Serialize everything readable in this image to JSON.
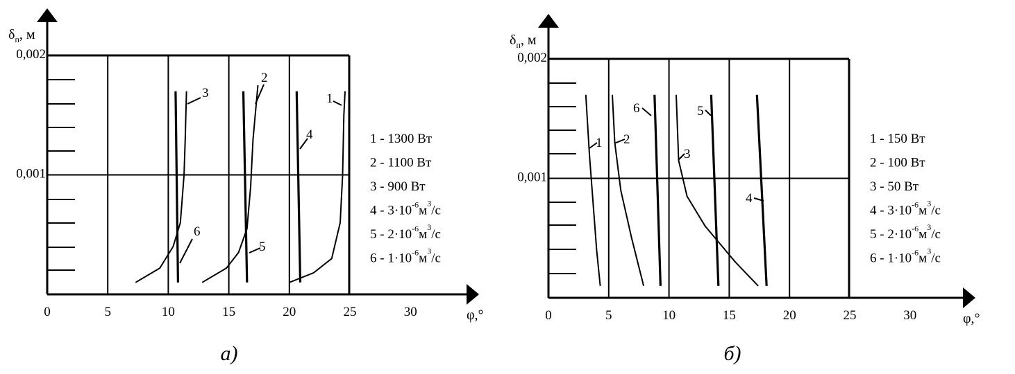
{
  "chart_data": [
    {
      "type": "line",
      "panel_caption": "а)",
      "xlabel": "φ,°",
      "ylabel": "δ",
      "ylabel_sub": "п",
      "ylabel_unit": ", м",
      "xlim": [
        0,
        35
      ],
      "ylim": [
        0,
        0.002
      ],
      "x_ticks": [
        "0",
        "5",
        "10",
        "15",
        "20",
        "25",
        "30"
      ],
      "y_ticks": [
        "0,001",
        "0,002"
      ],
      "grid": true,
      "legend_position": "right",
      "legend": [
        {
          "text": "1 - 1300 Вт"
        },
        {
          "text": "2 - 1100 Вт"
        },
        {
          "text": "3 - 900 Вт"
        },
        {
          "text": "4 - 3·10",
          "sup1": "-6",
          "unit": "м",
          "sup2": "3",
          "tail": "/с"
        },
        {
          "text": "5 - 2·10",
          "sup1": "-6",
          "unit": "м",
          "sup2": "3",
          "tail": "/с"
        },
        {
          "text": "6 - 1·10",
          "sup1": "-6",
          "unit": "м",
          "sup2": "3",
          "tail": "/с"
        }
      ],
      "series": [
        {
          "name": "1",
          "points": [
            [
              20.0,
              0.0001
            ],
            [
              22.0,
              0.00018
            ],
            [
              23.5,
              0.0003
            ],
            [
              24.2,
              0.0006
            ],
            [
              24.4,
              0.001
            ],
            [
              24.5,
              0.0015
            ],
            [
              24.6,
              0.0017
            ]
          ]
        },
        {
          "name": "2",
          "points": [
            [
              12.8,
              0.0001
            ],
            [
              14.8,
              0.00022
            ],
            [
              15.8,
              0.00035
            ],
            [
              16.5,
              0.00055
            ],
            [
              16.8,
              0.0009
            ],
            [
              17.0,
              0.0013
            ],
            [
              17.4,
              0.00175
            ]
          ]
        },
        {
          "name": "3",
          "points": [
            [
              7.3,
              0.0001
            ],
            [
              9.3,
              0.00022
            ],
            [
              10.4,
              0.0004
            ],
            [
              11.0,
              0.0006
            ],
            [
              11.3,
              0.001
            ],
            [
              11.4,
              0.0013
            ],
            [
              11.5,
              0.0017
            ]
          ]
        },
        {
          "name": "4",
          "points": [
            [
              20.6,
              0.0017
            ],
            [
              20.9,
              0.0001
            ]
          ]
        },
        {
          "name": "5",
          "points": [
            [
              16.2,
              0.0017
            ],
            [
              16.5,
              0.0001
            ]
          ]
        },
        {
          "name": "6",
          "points": [
            [
              10.6,
              0.0017
            ],
            [
              10.8,
              0.0001
            ]
          ]
        }
      ],
      "curve_labels": [
        "1",
        "2",
        "3",
        "4",
        "5",
        "6"
      ]
    },
    {
      "type": "line",
      "panel_caption": "б)",
      "xlabel": "φ,°",
      "ylabel": "δ",
      "ylabel_sub": "п",
      "ylabel_unit": ", м",
      "xlim": [
        0,
        35
      ],
      "ylim": [
        0,
        0.002
      ],
      "x_ticks": [
        "0",
        "5",
        "10",
        "15",
        "20",
        "25",
        "30"
      ],
      "y_ticks": [
        "0,001",
        "0,002"
      ],
      "grid": true,
      "legend_position": "right",
      "legend": [
        {
          "text": "1 - 150 Вт"
        },
        {
          "text": "2 - 100 Вт"
        },
        {
          "text": "3 - 50 Вт"
        },
        {
          "text": "4 - 3·10",
          "sup1": "-6",
          "unit": "м",
          "sup2": "3",
          "tail": "/с"
        },
        {
          "text": "5 - 2·10",
          "sup1": "-6",
          "unit": "м",
          "sup2": "3",
          "tail": "/с"
        },
        {
          "text": "6 - 1·10",
          "sup1": "-6",
          "unit": "м",
          "sup2": "3",
          "tail": "/с"
        }
      ],
      "series": [
        {
          "name": "1",
          "points": [
            [
              3.1,
              0.0017
            ],
            [
              3.4,
              0.0012
            ],
            [
              3.7,
              0.0008
            ],
            [
              4.0,
              0.0004
            ],
            [
              4.3,
              0.0001
            ]
          ]
        },
        {
          "name": "2",
          "points": [
            [
              5.3,
              0.0017
            ],
            [
              5.5,
              0.0013
            ],
            [
              6.0,
              0.0009
            ],
            [
              6.9,
              0.0005
            ],
            [
              7.9,
              0.0001
            ]
          ]
        },
        {
          "name": "3",
          "points": [
            [
              10.6,
              0.0017
            ],
            [
              10.8,
              0.00115
            ],
            [
              11.5,
              0.00085
            ],
            [
              13.0,
              0.0006
            ],
            [
              15.5,
              0.0003
            ],
            [
              17.4,
              0.0001
            ]
          ]
        },
        {
          "name": "4",
          "points": [
            [
              17.3,
              0.0017
            ],
            [
              18.1,
              0.0001
            ]
          ]
        },
        {
          "name": "5",
          "points": [
            [
              13.5,
              0.0017
            ],
            [
              14.1,
              0.0001
            ]
          ]
        },
        {
          "name": "6",
          "points": [
            [
              8.8,
              0.0017
            ],
            [
              9.3,
              0.0001
            ]
          ]
        }
      ],
      "curve_labels": [
        "1",
        "2",
        "3",
        "4",
        "5",
        "6"
      ]
    }
  ]
}
